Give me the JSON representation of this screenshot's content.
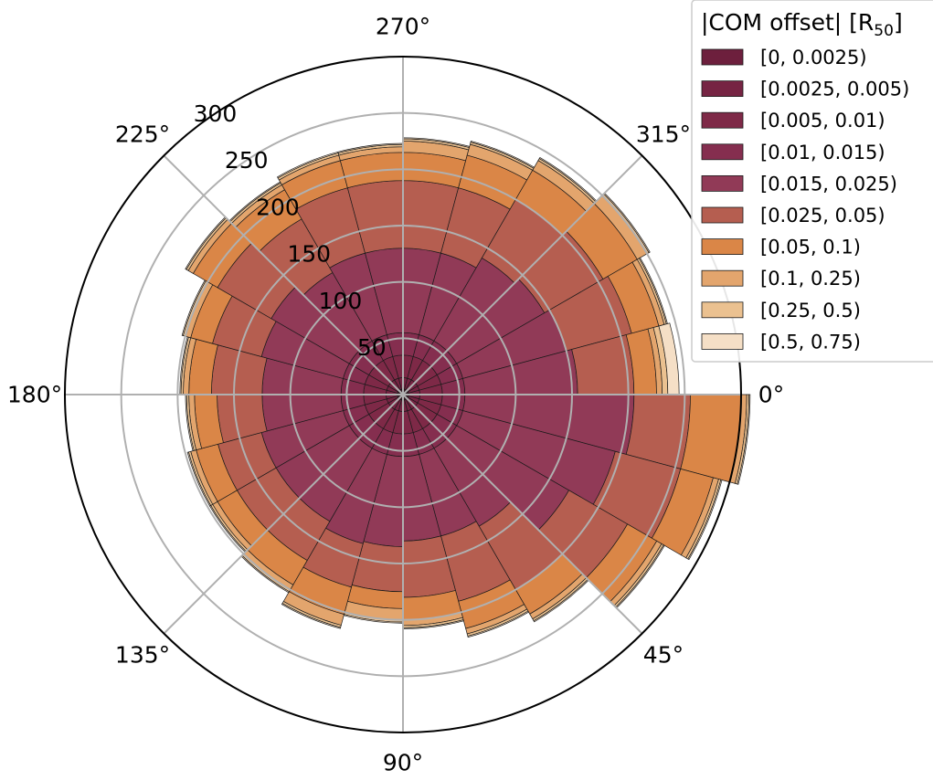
{
  "chart_data": {
    "type": "polar-stacked-bar",
    "title": "",
    "angle_labels": [
      "0°",
      "45°",
      "90°",
      "135°",
      "180°",
      "225°",
      "270°",
      "315°"
    ],
    "angle_direction": "clockwise",
    "radial_ticks": [
      50,
      100,
      150,
      200,
      250,
      300
    ],
    "radial_max": 300,
    "grid": true,
    "legend_position": "top-right",
    "legend_title": "|COM offset| [R",
    "legend_title_sub": "50",
    "legend_title_end": "]",
    "bin_width_deg": 15,
    "bin_centers_deg": [
      7.5,
      22.5,
      37.5,
      52.5,
      67.5,
      82.5,
      97.5,
      112.5,
      127.5,
      142.5,
      157.5,
      172.5,
      187.5,
      202.5,
      217.5,
      232.5,
      247.5,
      262.5,
      277.5,
      292.5,
      307.5,
      322.5,
      337.5,
      352.5
    ],
    "series": [
      {
        "name": "[0, 0.0025)",
        "color": "#6d1f3d",
        "values": [
          5,
          5,
          5,
          5,
          5,
          5,
          5,
          5,
          5,
          5,
          5,
          5,
          5,
          5,
          5,
          5,
          5,
          5,
          5,
          5,
          5,
          5,
          5,
          5
        ]
      },
      {
        "name": "[0.0025, 0.005)",
        "color": "#762443",
        "values": [
          10,
          10,
          10,
          10,
          10,
          10,
          10,
          10,
          10,
          10,
          10,
          10,
          10,
          10,
          10,
          10,
          10,
          10,
          10,
          10,
          10,
          10,
          10,
          10
        ]
      },
      {
        "name": "[0.005, 0.01)",
        "color": "#7e2947",
        "values": [
          20,
          20,
          20,
          20,
          20,
          20,
          20,
          20,
          20,
          20,
          20,
          20,
          20,
          20,
          20,
          20,
          20,
          20,
          20,
          20,
          20,
          20,
          20,
          20
        ]
      },
      {
        "name": "[0.01, 0.015)",
        "color": "#852e4f",
        "values": [
          20,
          20,
          20,
          20,
          20,
          20,
          20,
          20,
          20,
          20,
          20,
          20,
          20,
          20,
          20,
          20,
          20,
          20,
          20,
          20,
          20,
          20,
          20,
          20
        ]
      },
      {
        "name": "[0.015, 0.025)",
        "color": "#913a57",
        "values": [
          150,
          140,
          115,
          80,
          75,
          75,
          80,
          82,
          75,
          75,
          75,
          70,
          70,
          75,
          80,
          70,
          75,
          75,
          75,
          75,
          85,
          90,
          95,
          100
        ]
      },
      {
        "name": "[0.025, 0.05)",
        "color": "#b55e50",
        "values": [
          50,
          60,
          60,
          65,
          60,
          50,
          40,
          40,
          40,
          40,
          40,
          40,
          45,
          45,
          55,
          55,
          60,
          60,
          60,
          60,
          60,
          60,
          60,
          50
        ]
      },
      {
        "name": "[0.05, 0.1)",
        "color": "#da8647",
        "values": [
          45,
          30,
          30,
          25,
          25,
          20,
          15,
          25,
          25,
          20,
          20,
          20,
          20,
          20,
          25,
          30,
          25,
          25,
          25,
          30,
          30,
          35,
          25,
          20
        ]
      },
      {
        "name": "[0.1, 0.25)",
        "color": "#e3a56d",
        "values": [
          5,
          5,
          5,
          5,
          5,
          5,
          10,
          10,
          5,
          5,
          5,
          5,
          5,
          5,
          5,
          5,
          5,
          5,
          10,
          10,
          10,
          10,
          5,
          5
        ]
      },
      {
        "name": "[0.25, 0.5)",
        "color": "#ebc190",
        "values": [
          2,
          2,
          2,
          2,
          2,
          2,
          2,
          2,
          2,
          2,
          2,
          2,
          2,
          2,
          2,
          2,
          2,
          2,
          2,
          2,
          2,
          2,
          2,
          5
        ]
      },
      {
        "name": "[0.5, 0.75)",
        "color": "#f5dfc6",
        "values": [
          1,
          1,
          1,
          1,
          1,
          1,
          1,
          1,
          1,
          1,
          1,
          1,
          1,
          1,
          1,
          1,
          1,
          1,
          1,
          1,
          1,
          1,
          1,
          10
        ]
      }
    ]
  }
}
